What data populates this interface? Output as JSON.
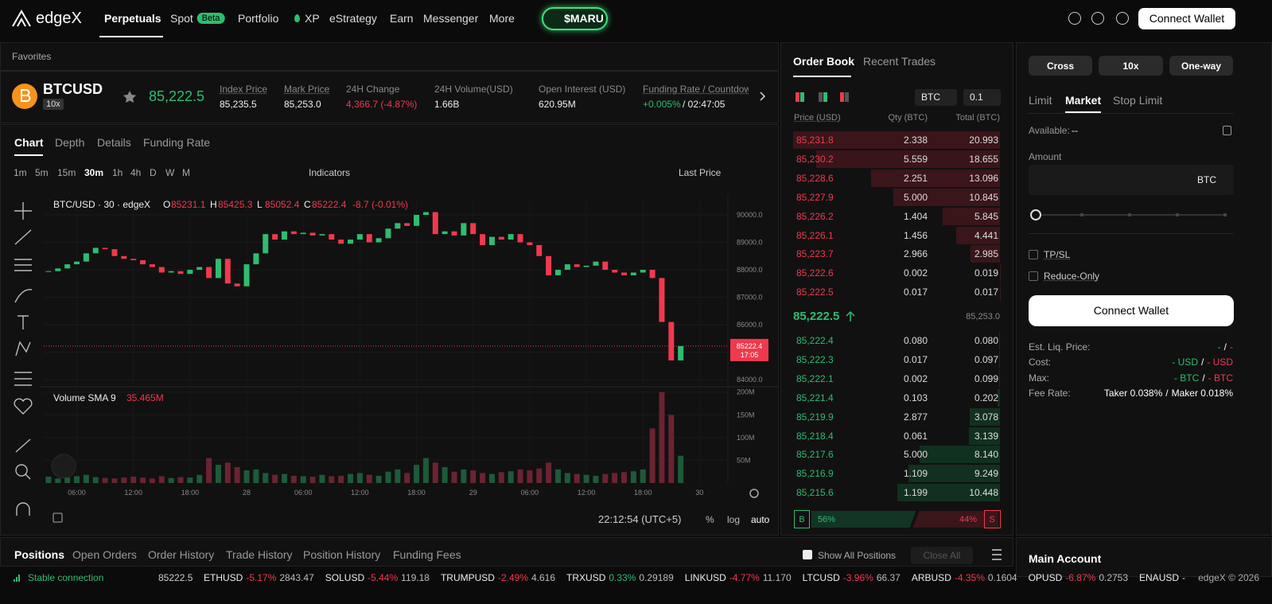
{
  "nav": {
    "logo": "edgeX",
    "items": [
      "Perpetuals",
      "Spot",
      "Portfolio",
      "XP",
      "eStrategy",
      "Earn",
      "Messenger",
      "More"
    ],
    "badge": "Beta",
    "promo": "$MARU",
    "connect": "Connect Wallet"
  },
  "favorites": "Favorites",
  "ticker": {
    "symbol": "BTCUSD",
    "leverage": "10x",
    "price": "85,222.5",
    "stats": [
      {
        "label": "Index Price",
        "value": "85,235.5"
      },
      {
        "label": "Mark Price",
        "value": "85,253.0"
      },
      {
        "label": "24H Change",
        "value": "4,366.7 (-4.87%)"
      },
      {
        "label": "24H Volume(USD)",
        "value": "1.66B"
      },
      {
        "label": "Open Interest (USD)",
        "value": "620.95M"
      },
      {
        "label": "Funding Rate / Countdown",
        "value": "+0.005%",
        "extra": "/ 02:47:05"
      }
    ]
  },
  "chart_tabs": [
    "Chart",
    "Depth",
    "Details",
    "Funding Rate"
  ],
  "intervals": [
    "1m",
    "5m",
    "15m",
    "30m",
    "1h",
    "4h",
    "D",
    "W",
    "M"
  ],
  "toolbar": {
    "indicators": "Indicators",
    "price_type": "Last Price"
  },
  "chart_data": {
    "type": "candlestick",
    "title": "BTC/USD · 30 · edgeX",
    "ohlc": [
      {
        "k": "O",
        "v": "85231.1"
      },
      {
        "k": "H",
        "v": "85425.3"
      },
      {
        "k": "L",
        "v": "85052.4"
      },
      {
        "k": "C",
        "v": "85222.4"
      }
    ],
    "change": "-8.7 (-0.01%)",
    "closes": [
      87950,
      88050,
      88200,
      88300,
      88600,
      88800,
      88750,
      88500,
      88400,
      88350,
      88200,
      88100,
      87900,
      87950,
      87850,
      88000,
      88100,
      87700,
      88400,
      87500,
      87400,
      88200,
      88600,
      89300,
      89100,
      89400,
      89300,
      89350,
      89250,
      89300,
      89100,
      88950,
      89100,
      89300,
      89000,
      89150,
      89500,
      89700,
      89600,
      90000,
      90100,
      89300,
      89400,
      89250,
      89700,
      89300,
      88900,
      89200,
      89100,
      89300,
      89000,
      88900,
      88500,
      87800,
      88000,
      88200,
      88100,
      88150,
      88300,
      88000,
      87900,
      87800,
      87900,
      88000,
      87700,
      86100,
      84700,
      85222.4
    ],
    "volumes": [
      14,
      10,
      12,
      15,
      18,
      13,
      11,
      10,
      12,
      14,
      12,
      10,
      15,
      11,
      13,
      12,
      18,
      55,
      40,
      45,
      35,
      28,
      30,
      22,
      18,
      20,
      16,
      15,
      14,
      18,
      15,
      16,
      20,
      22,
      18,
      16,
      25,
      30,
      22,
      40,
      55,
      45,
      35,
      25,
      30,
      28,
      22,
      20,
      24,
      26,
      30,
      28,
      32,
      45,
      30,
      22,
      20,
      18,
      16,
      20,
      22,
      24,
      26,
      30,
      120,
      200,
      150,
      60
    ],
    "ylim": [
      83770,
      90580
    ],
    "yticks": [
      {
        "value": 90000,
        "label": "90000.0"
      },
      {
        "value": 89000,
        "label": "89000.0"
      },
      {
        "value": 88000,
        "label": "88000.0"
      },
      {
        "value": 87000,
        "label": "87000.0"
      },
      {
        "value": 86000,
        "label": "86000.0"
      },
      {
        "value": 85000,
        "label": "85000.0"
      },
      {
        "value": 84000,
        "label": "84000.0"
      }
    ],
    "vlim": [
      0,
      210
    ],
    "vticks": [
      {
        "value": 200,
        "label": "200M"
      },
      {
        "value": 150,
        "label": "150M"
      },
      {
        "value": 100,
        "label": "100M"
      },
      {
        "value": 50,
        "label": "50M"
      }
    ],
    "xlim": [
      -0.5,
      72
    ],
    "xticks": [
      {
        "value": 3,
        "label": "06:00"
      },
      {
        "value": 9,
        "label": "12:00"
      },
      {
        "value": 15,
        "label": "18:00"
      },
      {
        "value": 21,
        "label": "28"
      },
      {
        "value": 27,
        "label": "06:00"
      },
      {
        "value": 33,
        "label": "12:00"
      },
      {
        "value": 39,
        "label": "18:00"
      },
      {
        "value": 45,
        "label": "29"
      },
      {
        "value": 51,
        "label": "06:00"
      },
      {
        "value": 57,
        "label": "12:00"
      },
      {
        "value": 63,
        "label": "18:00"
      },
      {
        "value": 69,
        "label": "30"
      }
    ],
    "last_tag": "85222.4",
    "countdown": "17:05",
    "volume_title": "Volume SMA 9",
    "volume_sma": "35.465M"
  },
  "chart_footer": {
    "clock": "22:12:54 (UTC+5)",
    "options": [
      "%",
      "log",
      "auto"
    ]
  },
  "orderbook": {
    "tabs": [
      "Order Book",
      "Recent Trades"
    ],
    "unit": "BTC",
    "step": "0.1",
    "headers": [
      "Price (USD)",
      "Qty (BTC)",
      "Total (BTC)"
    ],
    "asks": [
      [
        "85,231.8",
        "2.338",
        "20.993"
      ],
      [
        "85,230.2",
        "5.559",
        "18.655"
      ],
      [
        "85,228.6",
        "2.251",
        "13.096"
      ],
      [
        "85,227.9",
        "5.000",
        "10.845"
      ],
      [
        "85,226.2",
        "1.404",
        "5.845"
      ],
      [
        "85,226.1",
        "1.456",
        "4.441"
      ],
      [
        "85,223.7",
        "2.966",
        "2.985"
      ],
      [
        "85,222.6",
        "0.002",
        "0.019"
      ],
      [
        "85,222.5",
        "0.017",
        "0.017"
      ]
    ],
    "mid": "85,222.5",
    "mark": "85,253.0",
    "bids": [
      [
        "85,222.4",
        "0.080",
        "0.080"
      ],
      [
        "85,222.3",
        "0.017",
        "0.097"
      ],
      [
        "85,222.1",
        "0.002",
        "0.099"
      ],
      [
        "85,221.4",
        "0.103",
        "0.202"
      ],
      [
        "85,219.9",
        "2.877",
        "3.078"
      ],
      [
        "85,218.4",
        "0.061",
        "3.139"
      ],
      [
        "85,217.6",
        "5.000",
        "8.140"
      ],
      [
        "85,216.9",
        "1.109",
        "9.249"
      ],
      [
        "85,215.6",
        "1.199",
        "10.448"
      ]
    ],
    "buy_key": "B",
    "buy": "56%",
    "sell": "44%",
    "sell_key": "S"
  },
  "order_form": {
    "modes": [
      "Cross",
      "10x",
      "One-way"
    ],
    "types": [
      "Limit",
      "Market",
      "Stop Limit"
    ],
    "available_label": "Available:",
    "available": "--",
    "amount": "Amount",
    "unit": "BTC",
    "checks": [
      "TP/SL",
      "Reduce-Only"
    ],
    "connect": "Connect Wallet",
    "sep": "/",
    "info": [
      {
        "label": "Est. Liq. Price:",
        "a": "-",
        "b": "-"
      },
      {
        "label": "Cost:",
        "a": "- USD",
        "b": "- USD"
      },
      {
        "label": "Max:",
        "a": "- BTC",
        "b": "- BTC"
      },
      {
        "label": "Fee Rate:",
        "a": "Taker 0.038%",
        "b": "Maker 0.018%"
      }
    ]
  },
  "positions": {
    "tabs": [
      "Positions",
      "Open Orders",
      "Order History",
      "Trade History",
      "Position History",
      "Funding Fees"
    ],
    "show_all": "Show All Positions",
    "close_all": "Close All",
    "account": "Main Account"
  },
  "status": {
    "connection": "Stable connection",
    "price": "85222.5",
    "tickers": [
      {
        "s": "ETHUSD",
        "c": "-5.17%",
        "p": "2843.47"
      },
      {
        "s": "SOLUSD",
        "c": "-5.44%",
        "p": "119.18"
      },
      {
        "s": "TRUMPUSD",
        "c": "-2.49%",
        "p": "4.616"
      },
      {
        "s": "TRXUSD",
        "c": "0.33%",
        "p": "0.29189"
      },
      {
        "s": "LINKUSD",
        "c": "-4.77%",
        "p": "11.170"
      },
      {
        "s": "LTCUSD",
        "c": "-3.96%",
        "p": "66.37"
      },
      {
        "s": "ARBUSD",
        "c": "-4.35%",
        "p": "0.1604"
      },
      {
        "s": "OPUSD",
        "c": "-6.87%",
        "p": "0.2753"
      },
      {
        "s": "ENAUSD",
        "c": "-"
      }
    ],
    "copyright": "edgeX © 2026"
  }
}
